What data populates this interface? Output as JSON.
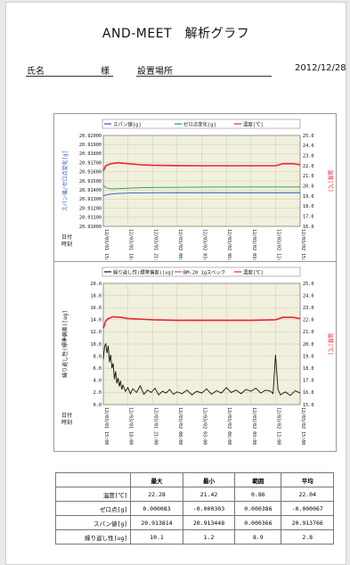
{
  "title": "AND-MEET　解析グラフ",
  "header": {
    "name_label": "氏名",
    "honorific": "様",
    "place_label": "設置場所",
    "date": "2012/12/28"
  },
  "chart_data": [
    {
      "type": "line",
      "legend": [
        "スパン値[g]",
        "ゼロ点変化[g]",
        "温度[℃]"
      ],
      "colors": [
        "#2a55c4",
        "#1aa03a",
        "#ee2233"
      ],
      "ylabel_left": "スパン値/ゼロ点変化[g]",
      "ylabel_right": "温度[℃]",
      "ylim": [
        20.91,
        20.92
      ],
      "yticks": [
        "20.92000",
        "20.91900",
        "20.91800",
        "20.91700",
        "20.91600",
        "20.91500",
        "20.91400",
        "20.91300",
        "20.91200",
        "20.91100",
        "20.91000"
      ],
      "y2lim": [
        16.0,
        25.0
      ],
      "y2ticks": [
        "25.0",
        "24.0",
        "23.0",
        "22.0",
        "21.0",
        "20.0",
        "19.0",
        "18.0",
        "17.0",
        "16.0"
      ],
      "xlabel": [
        "日付",
        "時刻"
      ],
      "xticks": [
        "12/03/01 15:00",
        "12/03/01 18:00",
        "12/03/01 21:00",
        "12/03/02 00:00",
        "12/03/02 03:00",
        "12/03/02 06:00",
        "12/03/02 09:00",
        "12/03/02 12:00",
        "12/03/02 15:00"
      ],
      "series": [
        {
          "name": "スパン値[g]",
          "axis": "left",
          "x": [
            0,
            0.1,
            0.3,
            0.6,
            1,
            1.5,
            2,
            3,
            4,
            5,
            6,
            7,
            8
          ],
          "values": [
            20.91335,
            20.91345,
            20.91355,
            20.91362,
            20.91366,
            20.91368,
            20.91369,
            20.9137,
            20.9137,
            20.9137,
            20.9137,
            20.9137,
            20.9137
          ]
        },
        {
          "name": "ゼロ点変化[g]",
          "axis": "left",
          "x": [
            0,
            0.1,
            0.3,
            0.6,
            1,
            1.5,
            2,
            3,
            4,
            5,
            6,
            7,
            8
          ],
          "values": [
            20.91455,
            20.91425,
            20.91412,
            20.91415,
            20.9142,
            20.91425,
            20.91428,
            20.9143,
            20.91432,
            20.91433,
            20.91433,
            20.91433,
            20.91433
          ]
        },
        {
          "name": "温度[℃]",
          "axis": "right",
          "x": [
            0,
            0.1,
            0.3,
            0.6,
            1,
            1.5,
            2,
            3,
            4,
            5,
            6,
            7,
            7.3,
            7.7,
            8
          ],
          "values": [
            21.5,
            22.0,
            22.2,
            22.3,
            22.2,
            22.1,
            22.05,
            22.02,
            22.0,
            22.0,
            22.0,
            22.0,
            22.2,
            22.2,
            22.1
          ]
        }
      ]
    },
    {
      "type": "line",
      "legend": [
        "繰り返し性(標準偏差)[ug]",
        "BM-20 1gスペック",
        "温度[℃]"
      ],
      "colors": [
        "#111111",
        "#d43aa0",
        "#ee2233"
      ],
      "ylabel_left": "繰り返し性(標準偏差)[ug]",
      "ylabel_right": "温度[℃]",
      "ylim": [
        0.0,
        20.0
      ],
      "yticks": [
        "20.0",
        "18.0",
        "16.0",
        "14.0",
        "12.0",
        "10.0",
        "8.0",
        "6.0",
        "4.0",
        "2.0",
        "0.0"
      ],
      "y2lim": [
        15.0,
        25.0
      ],
      "y2ticks": [
        "25.0",
        "24.0",
        "23.0",
        "22.0",
        "21.0",
        "20.0",
        "19.0",
        "18.0",
        "17.0",
        "16.0",
        "15.0"
      ],
      "xlabel": [
        "日付",
        "時刻"
      ],
      "xticks": [
        "12/03/01 15:00",
        "12/03/01 18:00",
        "12/03/01 21:00",
        "12/03/02 00:00",
        "12/03/02 03:00",
        "12/03/02 06:00",
        "12/03/02 09:00",
        "12/03/02 12:00",
        "12/03/02 15:00"
      ],
      "series": [
        {
          "name": "繰り返し性(標準偏差)[ug]",
          "axis": "left",
          "x": [
            0,
            0.05,
            0.1,
            0.15,
            0.2,
            0.25,
            0.3,
            0.35,
            0.4,
            0.45,
            0.5,
            0.55,
            0.6,
            0.65,
            0.7,
            0.75,
            0.8,
            0.9,
            1,
            1.1,
            1.2,
            1.35,
            1.5,
            1.65,
            1.8,
            1.95,
            2.1,
            2.25,
            2.4,
            2.55,
            2.7,
            2.85,
            3,
            3.2,
            3.4,
            3.6,
            3.8,
            4,
            4.2,
            4.4,
            4.6,
            4.8,
            5,
            5.2,
            5.4,
            5.6,
            5.8,
            6,
            6.2,
            6.4,
            6.6,
            6.8,
            6.9,
            7,
            7.1,
            7.2,
            7.4,
            7.6,
            7.8,
            8
          ],
          "values": [
            7.5,
            9.5,
            10.1,
            8.5,
            9.7,
            7.0,
            8.2,
            6.0,
            6.8,
            4.2,
            5.5,
            3.5,
            4.4,
            3.0,
            3.9,
            2.5,
            3.2,
            2.2,
            2.8,
            1.8,
            2.6,
            2.0,
            3.1,
            1.7,
            2.4,
            2.0,
            2.7,
            1.6,
            2.2,
            1.9,
            2.5,
            1.7,
            2.1,
            1.8,
            2.4,
            1.6,
            2.2,
            1.9,
            2.6,
            1.7,
            2.3,
            1.9,
            2.8,
            2.0,
            2.4,
            1.8,
            2.5,
            2.2,
            2.7,
            1.9,
            2.4,
            2.2,
            1.8,
            8.2,
            2.5,
            1.6,
            2.1,
            1.5,
            2.3,
            1.9
          ]
        },
        {
          "name": "温度[℃]",
          "axis": "right",
          "x": [
            0,
            0.1,
            0.2,
            0.4,
            0.7,
            1,
            1.5,
            2,
            3,
            4,
            5,
            6,
            7,
            7.3,
            7.7,
            8
          ],
          "values": [
            21.3,
            21.9,
            22.1,
            22.25,
            22.2,
            22.1,
            22.05,
            22.0,
            21.95,
            21.95,
            21.95,
            21.95,
            22.0,
            22.2,
            22.2,
            22.1
          ]
        }
      ]
    }
  ],
  "table": {
    "headers": [
      "",
      "最大",
      "最小",
      "範囲",
      "平均"
    ],
    "rows": [
      [
        "温度[℃]",
        "22.28",
        "21.42",
        "0.86",
        "22.04"
      ],
      [
        "ゼロ点[g]",
        "0.000083",
        "-0.000303",
        "0.000386",
        "-0.000067"
      ],
      [
        "スパン値[g]",
        "20.913814",
        "20.913448",
        "0.000366",
        "20.913766"
      ],
      [
        "繰り返し性[ug]",
        "10.1",
        "1.2",
        "8.9",
        "2.8"
      ]
    ]
  }
}
